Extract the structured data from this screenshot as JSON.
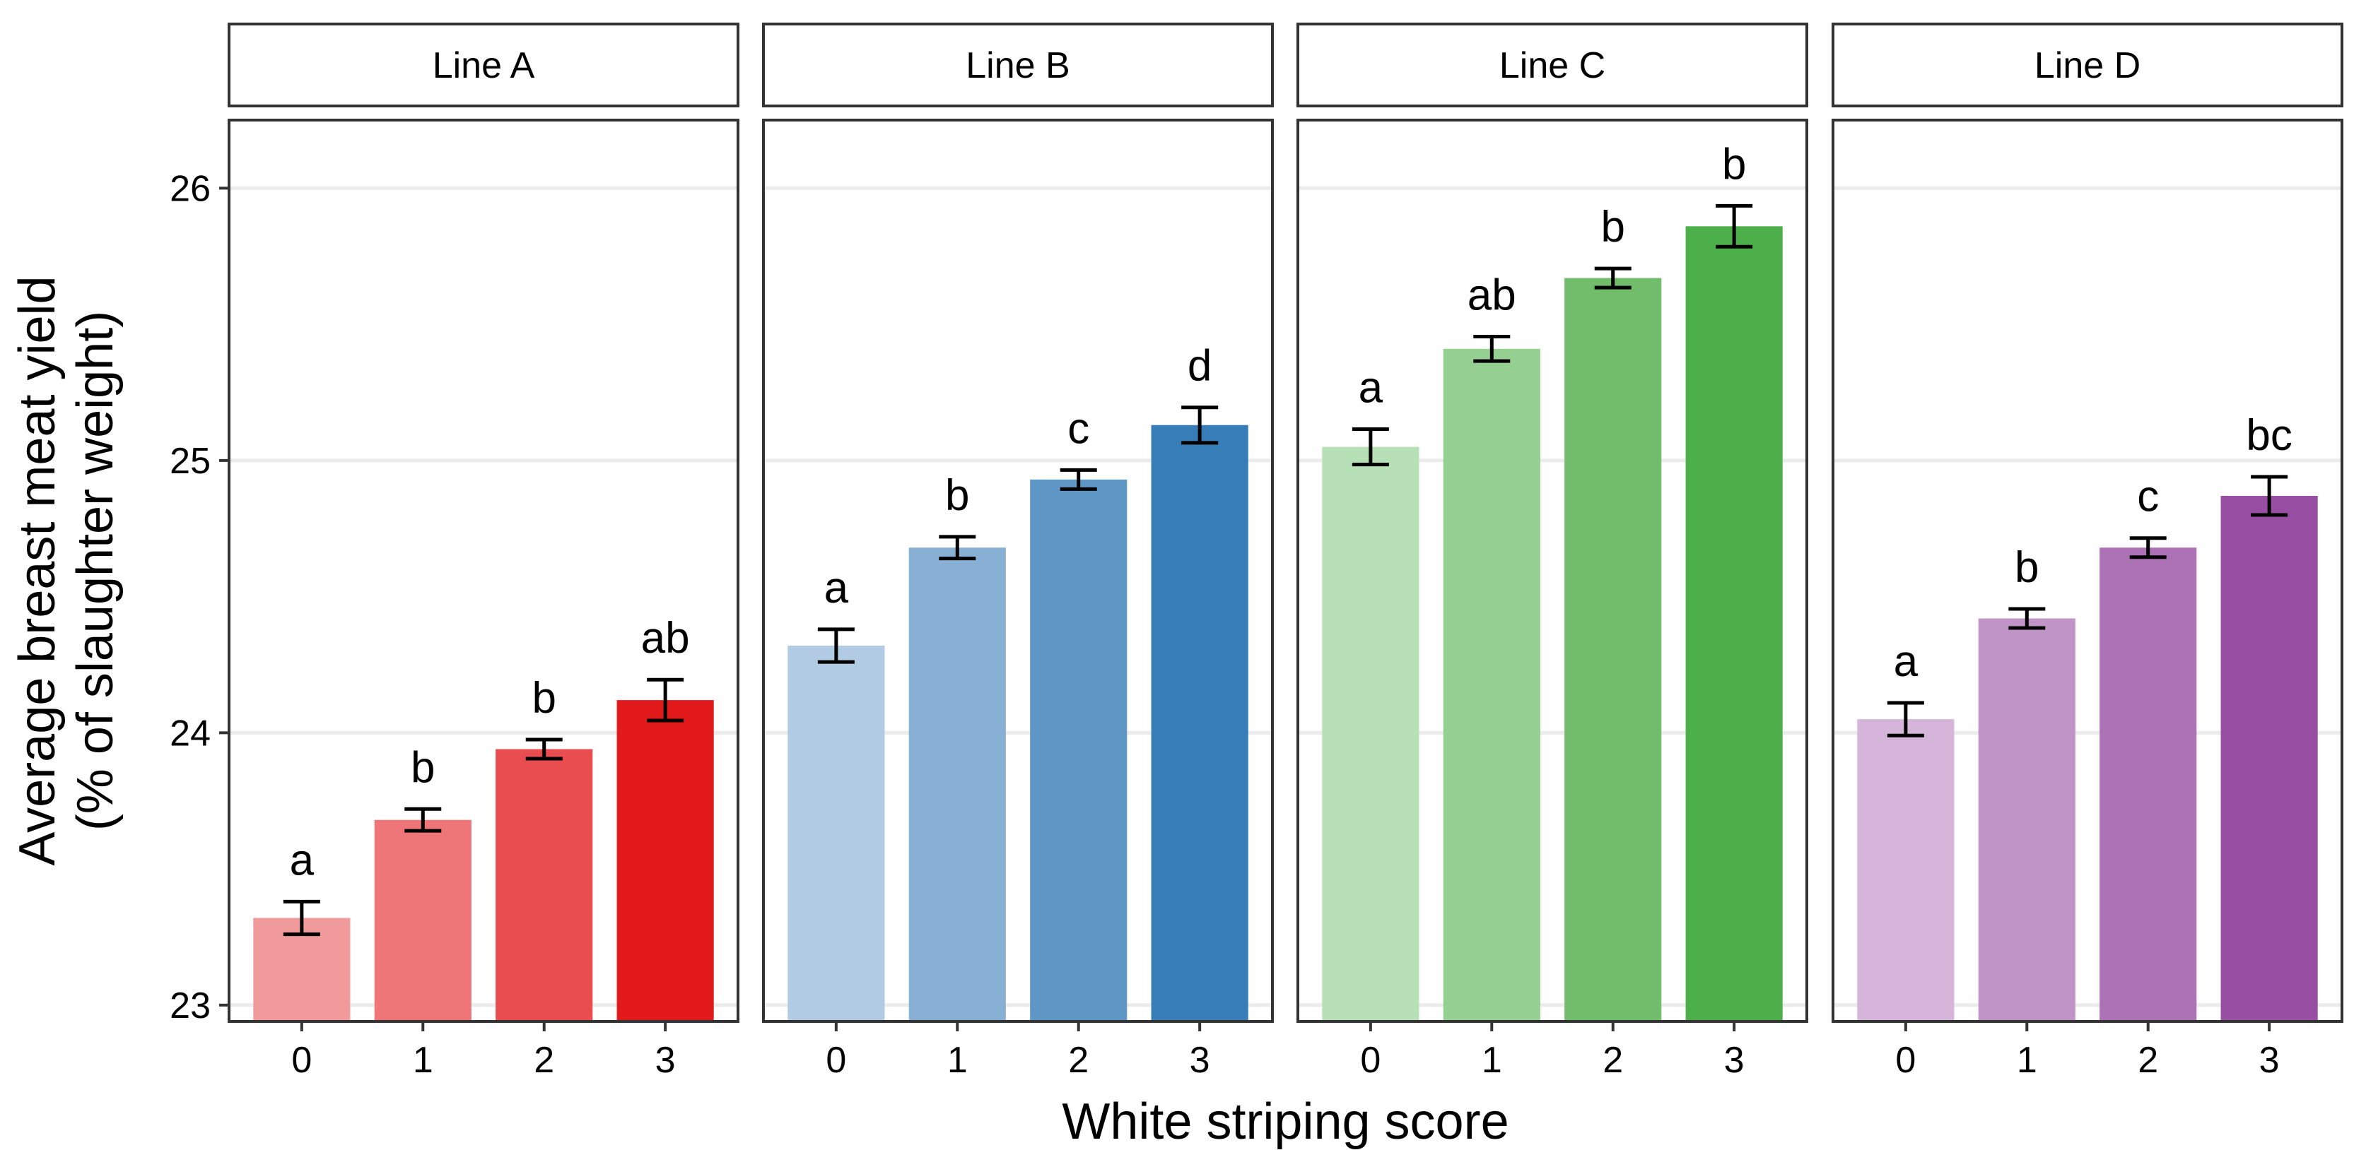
{
  "chart_data": {
    "type": "bar",
    "facet_titles": [
      "Line A",
      "Line B",
      "Line C",
      "Line D"
    ],
    "categories": [
      "0",
      "1",
      "2",
      "3"
    ],
    "xlabel": "White striping score",
    "ylabel": [
      "Average breast meat yield",
      "(% of slaughter weight)"
    ],
    "ylim": [
      22.94,
      26.25
    ],
    "yticks": [
      "23",
      "24",
      "25",
      "26"
    ],
    "grid": true,
    "series": [
      {
        "name": "Line A",
        "values": [
          23.32,
          23.68,
          23.94,
          24.12
        ],
        "error": [
          0.06,
          0.04,
          0.035,
          0.075
        ],
        "letters": [
          "a",
          "b",
          "b",
          "ab"
        ],
        "colors": [
          "#f19a9b",
          "#ef7678",
          "#ea4d4f",
          "#e31a1c"
        ]
      },
      {
        "name": "Line B",
        "values": [
          24.32,
          24.68,
          24.93,
          25.13
        ],
        "error": [
          0.06,
          0.04,
          0.035,
          0.065
        ],
        "letters": [
          "a",
          "b",
          "c",
          "d"
        ],
        "colors": [
          "#b0cbe3",
          "#88b0d4",
          "#5e96c5",
          "#377eb8"
        ]
      },
      {
        "name": "Line C",
        "values": [
          25.05,
          25.41,
          25.67,
          25.86
        ],
        "error": [
          0.065,
          0.045,
          0.035,
          0.075
        ],
        "letters": [
          "a",
          "ab",
          "b",
          "b"
        ],
        "colors": [
          "#b8e0b6",
          "#95d092",
          "#71bd6c",
          "#4daf4a"
        ]
      },
      {
        "name": "Line D",
        "values": [
          24.05,
          24.42,
          24.68,
          24.87
        ],
        "error": [
          0.06,
          0.035,
          0.035,
          0.07
        ],
        "letters": [
          "a",
          "b",
          "c",
          "bc"
        ],
        "colors": [
          "#d5b5d9",
          "#c194c8",
          "#ad72b6",
          "#984ea3"
        ]
      }
    ]
  }
}
